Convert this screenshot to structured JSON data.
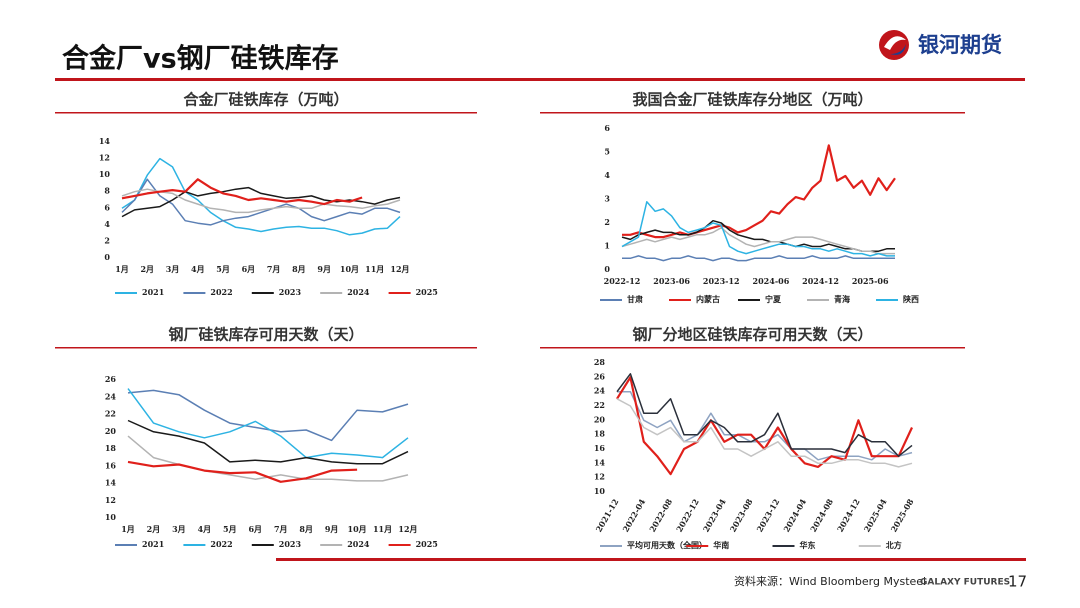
{
  "header": {
    "title": "合金厂vs钢厂硅铁库存",
    "logo": "银河期货"
  },
  "footer": {
    "source": "资料来源：Wind Bloomberg Mysteel",
    "brand": "GALAXY FUTURES",
    "page": 17
  },
  "chart_data": [
    {
      "type": "line",
      "title": "合金厂硅铁库存（万吨）",
      "x": [
        1,
        1.5,
        2,
        2.5,
        3,
        3.5,
        4,
        4.5,
        5,
        5.5,
        6,
        6.5,
        7,
        7.5,
        8,
        8.5,
        9,
        9.5,
        10,
        10.5,
        11,
        11.5,
        12
      ],
      "xlim": [
        1,
        12
      ],
      "xticks": [
        {
          "value": 1,
          "label": "1月"
        },
        {
          "value": 2,
          "label": "2月"
        },
        {
          "value": 3,
          "label": "3月"
        },
        {
          "value": 4,
          "label": "4月"
        },
        {
          "value": 5,
          "label": "5月"
        },
        {
          "value": 6,
          "label": "6月"
        },
        {
          "value": 7,
          "label": "7月"
        },
        {
          "value": 8,
          "label": "8月"
        },
        {
          "value": 9,
          "label": "9月"
        },
        {
          "value": 10,
          "label": "10月"
        },
        {
          "value": 11,
          "label": "11月"
        },
        {
          "value": 12,
          "label": "12月"
        }
      ],
      "ylim": [
        0,
        14
      ],
      "yticks": [
        0,
        2,
        4,
        6,
        8,
        10,
        12,
        14
      ],
      "series": [
        {
          "name": "2021",
          "color": "#2db3e3",
          "values": [
            6,
            7,
            10,
            12,
            11,
            8,
            7,
            5.5,
            4.5,
            3.7,
            3.5,
            3.2,
            3.5,
            3.7,
            3.8,
            3.6,
            3.6,
            3.3,
            2.8,
            3,
            3.5,
            3.6,
            5
          ]
        },
        {
          "name": "2022",
          "color": "#5b7fb4",
          "values": [
            5.5,
            7,
            9.5,
            7.5,
            6.5,
            4.5,
            4.2,
            4,
            4.5,
            4.8,
            5,
            5.5,
            6,
            6.5,
            6,
            5,
            4.5,
            5,
            5.5,
            5.3,
            6,
            6,
            5.5
          ]
        },
        {
          "name": "2023",
          "color": "#1a1a1a",
          "values": [
            5,
            5.8,
            6,
            6.2,
            7,
            8,
            7.5,
            7.8,
            8,
            8.3,
            8.5,
            7.8,
            7.5,
            7.2,
            7.3,
            7.5,
            7,
            6.8,
            7,
            6.8,
            6.5,
            7,
            7.3
          ]
        },
        {
          "name": "2024",
          "color": "#b3b3b3",
          "values": [
            7.5,
            8,
            8.3,
            8,
            7.8,
            7,
            6.5,
            6,
            5.8,
            5.5,
            5.5,
            5.8,
            6,
            6.2,
            6,
            6,
            6.5,
            6.3,
            6.2,
            6,
            6.3,
            6.5,
            7
          ]
        },
        {
          "name": "2025",
          "color": "#e0201b",
          "values": [
            7.2,
            7.5,
            7.8,
            8,
            8.2,
            8,
            9.5,
            8.5,
            7.8,
            7.5,
            7,
            7.2,
            7,
            6.8,
            7,
            6.8,
            6.5,
            7,
            6.8,
            7.3,
            null,
            null,
            null
          ]
        }
      ]
    },
    {
      "type": "line",
      "title": "我国合金厂硅铁库存分地区（万吨）",
      "x": [
        0,
        1,
        2,
        3,
        4,
        5,
        6,
        7,
        8,
        9,
        10,
        11,
        12,
        13,
        14,
        15,
        16,
        17,
        18,
        19,
        20,
        21,
        22,
        23,
        24,
        25,
        26,
        27,
        28,
        29,
        30,
        31,
        32,
        33
      ],
      "xlim": [
        0,
        33
      ],
      "xticks": [
        {
          "value": 0,
          "label": "2022-12"
        },
        {
          "value": 6,
          "label": "2023-06"
        },
        {
          "value": 12,
          "label": "2023-12"
        },
        {
          "value": 18,
          "label": "2024-06"
        },
        {
          "value": 24,
          "label": "2024-12"
        },
        {
          "value": 30,
          "label": "2025-06"
        }
      ],
      "ylim": [
        0,
        6
      ],
      "yticks": [
        0,
        1,
        2,
        3,
        4,
        5,
        6
      ],
      "series": [
        {
          "name": "甘肃",
          "color": "#5b7fb4",
          "values": [
            0.5,
            0.5,
            0.6,
            0.5,
            0.5,
            0.4,
            0.5,
            0.5,
            0.6,
            0.5,
            0.5,
            0.4,
            0.5,
            0.5,
            0.4,
            0.4,
            0.5,
            0.5,
            0.5,
            0.6,
            0.5,
            0.5,
            0.5,
            0.6,
            0.5,
            0.5,
            0.5,
            0.6,
            0.5,
            0.5,
            0.5,
            0.5,
            0.5,
            0.5
          ]
        },
        {
          "name": "内蒙古",
          "color": "#e0201b",
          "values": [
            1.5,
            1.5,
            1.6,
            1.5,
            1.4,
            1.4,
            1.5,
            1.6,
            1.5,
            1.6,
            1.7,
            1.8,
            1.9,
            1.8,
            1.6,
            1.7,
            1.9,
            2.1,
            2.5,
            2.4,
            2.8,
            3.1,
            3,
            3.5,
            3.8,
            5.3,
            3.8,
            4,
            3.5,
            3.8,
            3.2,
            3.9,
            3.4,
            3.9
          ]
        },
        {
          "name": "宁夏",
          "color": "#1a1a1a",
          "values": [
            1.4,
            1.3,
            1.5,
            1.6,
            1.7,
            1.6,
            1.6,
            1.5,
            1.5,
            1.6,
            1.8,
            2.1,
            2,
            1.7,
            1.5,
            1.4,
            1.3,
            1.3,
            1.2,
            1.2,
            1.1,
            1,
            1.1,
            1,
            1,
            1.1,
            1,
            0.9,
            0.9,
            0.8,
            0.8,
            0.8,
            0.9,
            0.9
          ]
        },
        {
          "name": "青海",
          "color": "#b3b3b3",
          "values": [
            1,
            1.1,
            1.2,
            1.3,
            1.2,
            1.3,
            1.4,
            1.3,
            1.4,
            1.5,
            1.5,
            1.6,
            1.8,
            1.5,
            1.3,
            1.1,
            1,
            1.1,
            1.2,
            1.2,
            1.3,
            1.4,
            1.4,
            1.4,
            1.3,
            1.2,
            1.1,
            1,
            0.9,
            0.8,
            0.8,
            0.7,
            0.7,
            0.7
          ]
        },
        {
          "name": "陕西",
          "color": "#2db3e3",
          "values": [
            1,
            1.2,
            1.4,
            2.9,
            2.5,
            2.6,
            2.3,
            1.8,
            1.6,
            1.7,
            1.8,
            2,
            1.9,
            1,
            0.8,
            0.7,
            0.8,
            0.9,
            1,
            1.1,
            1.1,
            1,
            1,
            0.9,
            0.9,
            0.8,
            0.9,
            0.8,
            0.7,
            0.7,
            0.6,
            0.7,
            0.6,
            0.6
          ]
        }
      ]
    },
    {
      "type": "line",
      "title": "钢厂硅铁库存可用天数（天）",
      "x": [
        1,
        2,
        3,
        4,
        5,
        6,
        7,
        8,
        9,
        10,
        11,
        12
      ],
      "xlim": [
        1,
        12
      ],
      "xticks": [
        {
          "value": 1,
          "label": "1月"
        },
        {
          "value": 2,
          "label": "2月"
        },
        {
          "value": 3,
          "label": "3月"
        },
        {
          "value": 4,
          "label": "4月"
        },
        {
          "value": 5,
          "label": "5月"
        },
        {
          "value": 6,
          "label": "6月"
        },
        {
          "value": 7,
          "label": "7月"
        },
        {
          "value": 8,
          "label": "8月"
        },
        {
          "value": 9,
          "label": "9月"
        },
        {
          "value": 10,
          "label": "10月"
        },
        {
          "value": 11,
          "label": "11月"
        },
        {
          "value": 12,
          "label": "12月"
        }
      ],
      "ylim": [
        10,
        26
      ],
      "yticks": [
        10,
        12,
        14,
        16,
        18,
        20,
        22,
        24,
        26
      ],
      "series": [
        {
          "name": "2021",
          "color": "#5b7fb4",
          "values": [
            24.5,
            24.8,
            24.3,
            22.5,
            21,
            20.5,
            20,
            20.2,
            19,
            22.5,
            22.3,
            23.2
          ]
        },
        {
          "name": "2022",
          "color": "#2db3e3",
          "values": [
            25,
            21,
            20,
            19.3,
            20,
            21.2,
            19.5,
            17,
            17.5,
            17.3,
            17,
            19.3
          ]
        },
        {
          "name": "2023",
          "color": "#1a1a1a",
          "values": [
            21.3,
            20,
            19.5,
            18.7,
            16.5,
            16.7,
            16.5,
            17,
            16.5,
            16.3,
            16.3,
            17.7
          ]
        },
        {
          "name": "2024",
          "color": "#b3b3b3",
          "values": [
            19.5,
            17,
            16.2,
            15.5,
            15,
            14.5,
            15,
            14.5,
            14.5,
            14.3,
            14.3,
            15
          ]
        },
        {
          "name": "2025",
          "color": "#e0201b",
          "values": [
            16.5,
            16,
            16.2,
            15.5,
            15.2,
            15.3,
            14.2,
            14.6,
            15.5,
            15.6,
            null,
            null
          ]
        }
      ]
    },
    {
      "type": "line",
      "title": "钢厂分地区硅铁库存可用天数（天）",
      "x": [
        0,
        2,
        4,
        6,
        8,
        10,
        12,
        14,
        16,
        18,
        20,
        22,
        24,
        26,
        28,
        30,
        32,
        34,
        36,
        38,
        40,
        42,
        44
      ],
      "xlim": [
        0,
        44
      ],
      "xticks": [
        {
          "value": 0,
          "label": "2021-12"
        },
        {
          "value": 4,
          "label": "2022-04"
        },
        {
          "value": 8,
          "label": "2022-08"
        },
        {
          "value": 12,
          "label": "2022-12"
        },
        {
          "value": 16,
          "label": "2023-04"
        },
        {
          "value": 20,
          "label": "2023-08"
        },
        {
          "value": 24,
          "label": "2023-12"
        },
        {
          "value": 28,
          "label": "2024-04"
        },
        {
          "value": 32,
          "label": "2024-08"
        },
        {
          "value": 36,
          "label": "2024-12"
        },
        {
          "value": 40,
          "label": "2025-04"
        },
        {
          "value": 44,
          "label": "2025-08"
        }
      ],
      "ylim": [
        10,
        28
      ],
      "yticks": [
        10,
        12,
        14,
        16,
        18,
        20,
        22,
        24,
        26,
        28
      ],
      "series": [
        {
          "name": "平均可用天数（全国）",
          "color": "#8ea3c2",
          "values": [
            24,
            24,
            20,
            19,
            20,
            17,
            18,
            21,
            18,
            18,
            17,
            17,
            18,
            16,
            16,
            14.5,
            15,
            15,
            15,
            14.5,
            16,
            15,
            15.5
          ]
        },
        {
          "name": "华南",
          "color": "#e0201b",
          "values": [
            23,
            26,
            17,
            15,
            12.5,
            16,
            17,
            20,
            17,
            18,
            18,
            16,
            19,
            16,
            14,
            13.5,
            15,
            14.5,
            20,
            15,
            15,
            15,
            19
          ]
        },
        {
          "name": "华东",
          "color": "#2a2f3a",
          "values": [
            24,
            26.5,
            21,
            21,
            23,
            18,
            18,
            20,
            19,
            17,
            17,
            18,
            21,
            16,
            16,
            16,
            16,
            15.5,
            18,
            17,
            17,
            15,
            16.5
          ]
        },
        {
          "name": "北方",
          "color": "#c4c4c4",
          "values": [
            23,
            22,
            19,
            18,
            19,
            17,
            17,
            19,
            16,
            16,
            15,
            16,
            17,
            15,
            15,
            14,
            14,
            14.5,
            14.5,
            14,
            14,
            13.5,
            14
          ]
        }
      ]
    }
  ]
}
